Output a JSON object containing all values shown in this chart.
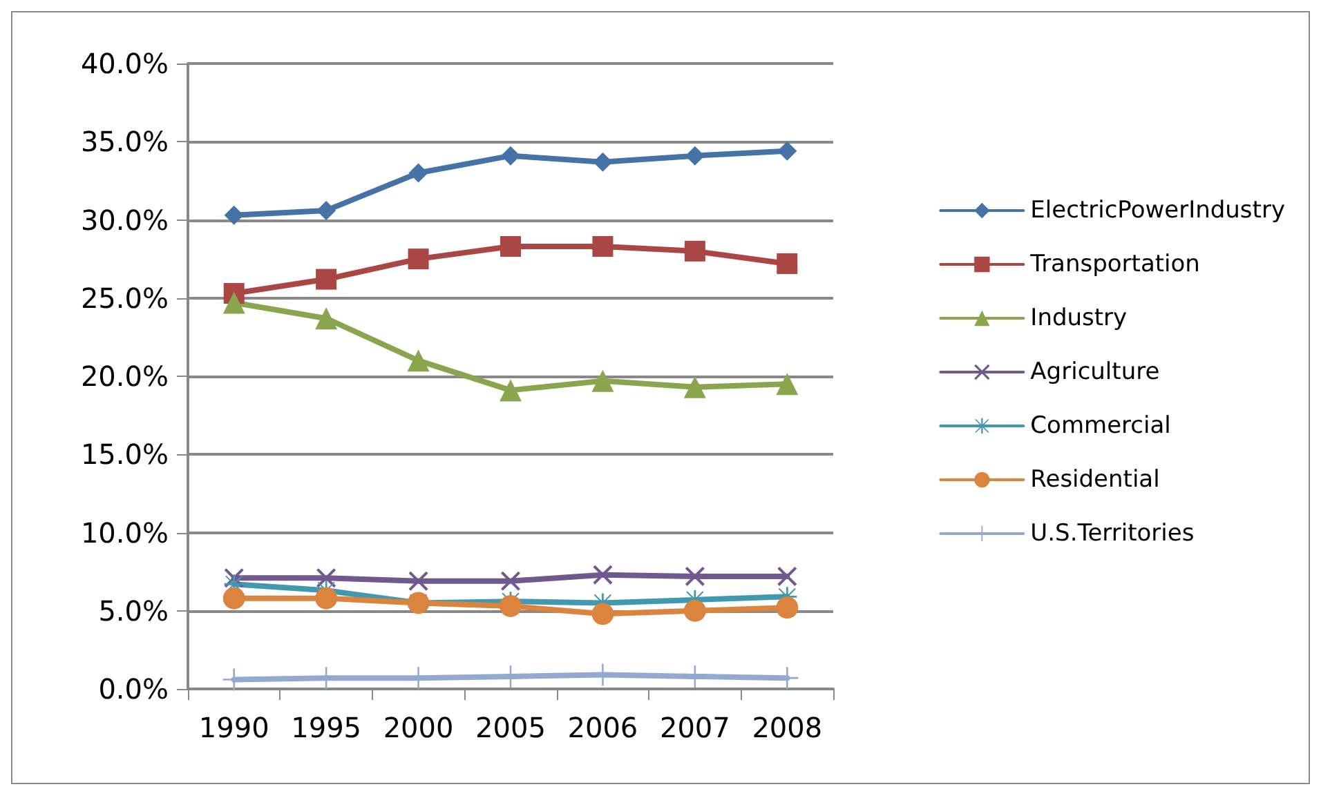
{
  "chart_data": {
    "type": "line",
    "categories": [
      "1990",
      "1995",
      "2000",
      "2005",
      "2006",
      "2007",
      "2008"
    ],
    "ylim": [
      0,
      40
    ],
    "yticks": [
      {
        "value": 0,
        "label": "0.0%"
      },
      {
        "value": 5,
        "label": "5.0%"
      },
      {
        "value": 10,
        "label": "10.0%"
      },
      {
        "value": 15,
        "label": "15.0%"
      },
      {
        "value": 20,
        "label": "20.0%"
      },
      {
        "value": 25,
        "label": "25.0%"
      },
      {
        "value": 30,
        "label": "30.0%"
      },
      {
        "value": 35,
        "label": "35.0%"
      },
      {
        "value": 40,
        "label": "40.0%"
      }
    ],
    "grid": "y",
    "legend": "right",
    "line_style": "solid",
    "series": [
      {
        "name": "ElectricPowerIndustry",
        "color": "#4572a7",
        "marker": "diamond",
        "values": [
          30.3,
          30.6,
          33.0,
          34.1,
          33.7,
          34.1,
          34.4
        ]
      },
      {
        "name": "Transportation",
        "color": "#aa4643",
        "marker": "square",
        "values": [
          25.3,
          26.2,
          27.5,
          28.3,
          28.3,
          28.0,
          27.2
        ]
      },
      {
        "name": "Industry",
        "color": "#89a54e",
        "marker": "triangle",
        "values": [
          24.7,
          23.7,
          21.0,
          19.1,
          19.7,
          19.3,
          19.5
        ]
      },
      {
        "name": "Agriculture",
        "color": "#71588f",
        "marker": "cross",
        "values": [
          7.1,
          7.1,
          6.9,
          6.9,
          7.3,
          7.2,
          7.2
        ]
      },
      {
        "name": "Commercial",
        "color": "#4198af",
        "marker": "star",
        "values": [
          6.7,
          6.3,
          5.5,
          5.6,
          5.5,
          5.7,
          5.9
        ]
      },
      {
        "name": "Residential",
        "color": "#db843d",
        "marker": "circle",
        "values": [
          5.8,
          5.8,
          5.5,
          5.3,
          4.8,
          5.0,
          5.2
        ]
      },
      {
        "name": "U.S.Territories",
        "color": "#93a9cf",
        "marker": "plus",
        "values": [
          0.6,
          0.7,
          0.7,
          0.8,
          0.9,
          0.8,
          0.7
        ]
      }
    ]
  }
}
